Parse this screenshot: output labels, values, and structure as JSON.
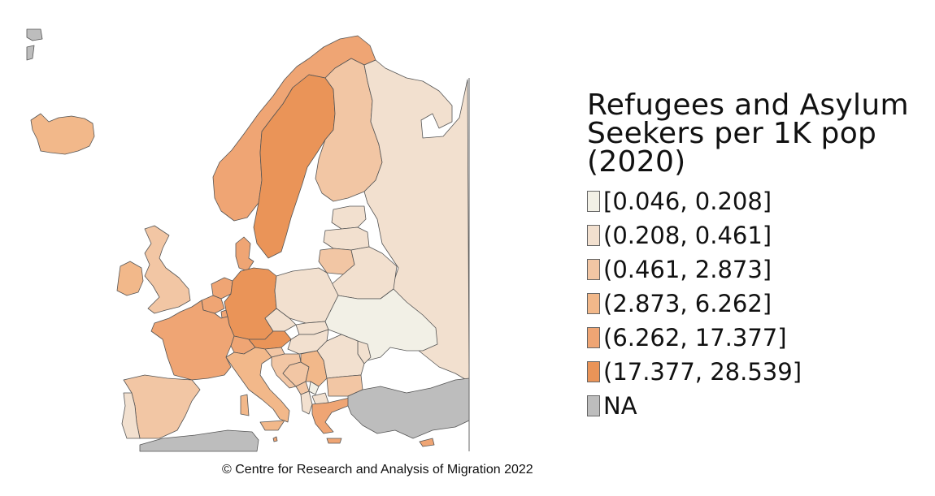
{
  "legend": {
    "title": "Refugees and Asylum Seekers per 1K pop (2020)",
    "classes": [
      {
        "label": "[0.046, 0.208]",
        "color": "#f2f0e6"
      },
      {
        "label": "(0.208, 0.461]",
        "color": "#f2e0cf"
      },
      {
        "label": "(0.461, 2.873]",
        "color": "#f2c6a4"
      },
      {
        "label": "(2.873, 6.262]",
        "color": "#f2b88a"
      },
      {
        "label": "(6.262, 17.377]",
        "color": "#efa574"
      },
      {
        "label": "(17.377, 28.539]",
        "color": "#ea9458"
      },
      {
        "label": "NA",
        "color": "#bdbdbd"
      }
    ]
  },
  "credit": "© Centre for Research and Analysis of Migration 2022",
  "region_classes": {
    "iceland": 3,
    "norway": 4,
    "sweden": 5,
    "finland": 2,
    "russia": 1,
    "estonia": 1,
    "latvia": 1,
    "lithuania": 2,
    "belarus": 1,
    "united-kingdom": 2,
    "ireland": 3,
    "netherlands": 4,
    "belgium": 4,
    "denmark": 4,
    "germany": 5,
    "poland": 1,
    "czechia": 1,
    "slovakia": 1,
    "ukraine": 0,
    "moldova": 1,
    "france": 4,
    "switzerland": 4,
    "austria": 5,
    "hungary": 1,
    "slovenia": 2,
    "croatia": 2,
    "bosnia": 2,
    "serbia": 3,
    "montenegro": 2,
    "kosovo": 0,
    "albania": 1,
    "north-macedonia": 1,
    "romania": 1,
    "bulgaria": 2,
    "italy": 3,
    "greece": 4,
    "cyprus": 4,
    "malta": 4,
    "spain": 2,
    "portugal": 1,
    "luxembourg": 4,
    "turkey": 6,
    "north-africa": 6,
    "arctic-islands": 6
  }
}
